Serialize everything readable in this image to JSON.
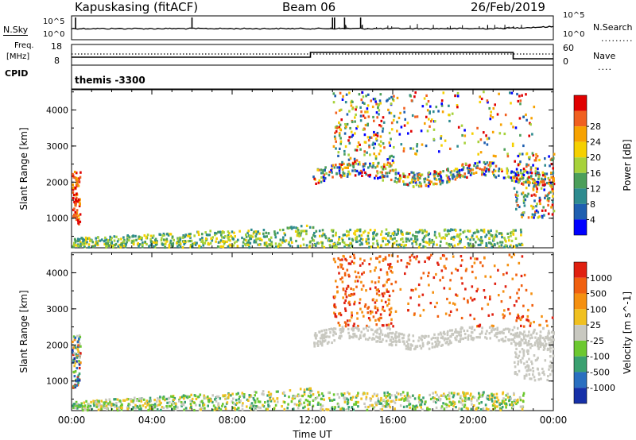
{
  "header": {
    "station": "Kapuskasing (fitACF)",
    "beam": "Beam 06",
    "date": "26/Feb/2019"
  },
  "strips": {
    "nsky_label": "N.Sky",
    "nsky_ticks": [
      "10^5",
      "10^0"
    ],
    "nsearch_label": "N.Search",
    "nsearch_ticks": [
      "10^5",
      "10^0"
    ],
    "freq_label_1": "Freq.",
    "freq_label_2": "[MHz]",
    "freq_ticks": [
      "18",
      "8"
    ],
    "nave_label": "Nave",
    "nave_ticks": [
      "60",
      "0"
    ],
    "cpid_label": "CPID",
    "cpid_value": "themis -3300"
  },
  "chart_data": [
    {
      "type": "heatmap",
      "title": "",
      "xlabel": "Time UT",
      "ylabel": "Slant Range [km]",
      "ylim": [
        180,
        4560
      ],
      "y_ticks": [
        "1000",
        "2000",
        "3000",
        "4000"
      ],
      "x_ticks": [
        "00:00",
        "04:00",
        "08:00",
        "12:00",
        "16:00",
        "20:00",
        "00:00"
      ],
      "colorbar": {
        "label": "Power [dB]",
        "ticks": [
          "4",
          "8",
          "12",
          "16",
          "20",
          "24",
          "28"
        ],
        "colors": [
          "#0000ff",
          "#1f5fb0",
          "#2e8b8f",
          "#4c9f5a",
          "#a7d23b",
          "#f5d000",
          "#f7a200",
          "#f06020",
          "#e00000"
        ]
      }
    },
    {
      "type": "heatmap",
      "title": "",
      "xlabel": "Time UT",
      "ylabel": "Slant Range [km]",
      "ylim": [
        180,
        4560
      ],
      "y_ticks": [
        "1000",
        "2000",
        "3000",
        "4000"
      ],
      "x_ticks": [
        "00:00",
        "04:00",
        "08:00",
        "12:00",
        "16:00",
        "20:00",
        "00:00"
      ],
      "colorbar": {
        "label": "Velocity [m s^-1]",
        "ticks": [
          "1000",
          "500",
          "100",
          "25",
          "-25",
          "-100",
          "-500",
          "-1000"
        ],
        "colors": [
          "#1630a8",
          "#2a6fc0",
          "#3aa070",
          "#6cc830",
          "#c8c8c0",
          "#f0c020",
          "#f59010",
          "#f06010",
          "#e02010"
        ]
      }
    }
  ]
}
